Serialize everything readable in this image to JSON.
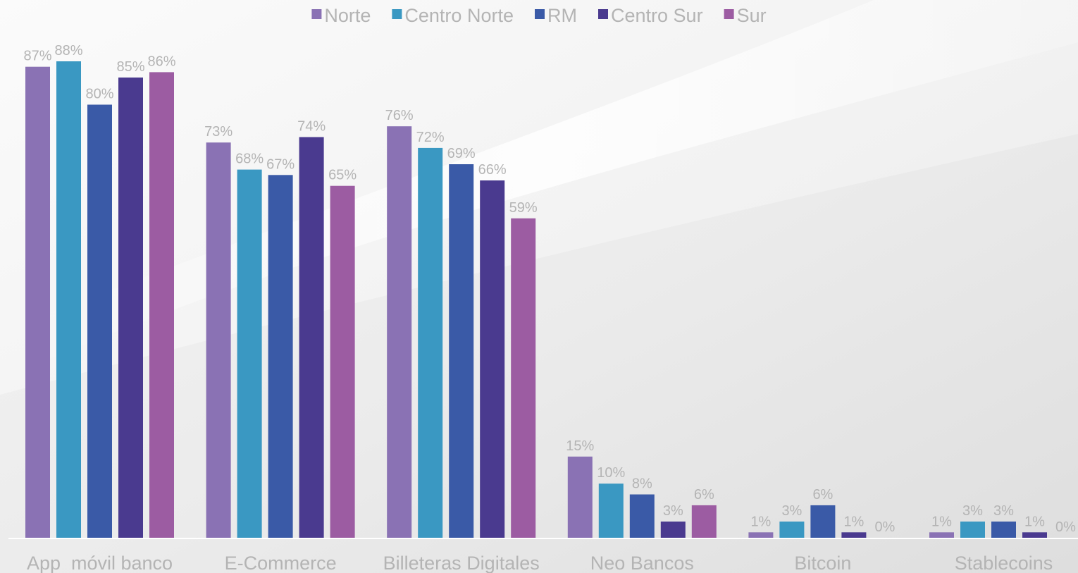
{
  "chart_data": {
    "type": "bar",
    "categories": [
      "App  móvil banco",
      "E-Commerce",
      "Billeteras Digitales",
      "Neo Bancos",
      "Bitcoin",
      "Stablecoins"
    ],
    "series": [
      {
        "name": "Norte",
        "color": "#8a72b4",
        "values": [
          87,
          73,
          76,
          15,
          1,
          1
        ]
      },
      {
        "name": "Centro Norte",
        "color": "#3a98c2",
        "values": [
          88,
          68,
          72,
          10,
          3,
          3
        ]
      },
      {
        "name": "RM",
        "color": "#3a5aa7",
        "values": [
          80,
          67,
          69,
          8,
          6,
          3
        ]
      },
      {
        "name": "Centro Sur",
        "color": "#4a3a8f",
        "values": [
          85,
          74,
          66,
          3,
          1,
          1
        ]
      },
      {
        "name": "Sur",
        "color": "#9c5ca2",
        "values": [
          86,
          65,
          59,
          6,
          0,
          0
        ]
      }
    ],
    "value_suffix": "%",
    "ylim": [
      0,
      100
    ],
    "legend_position": "top-center",
    "grid": false
  }
}
